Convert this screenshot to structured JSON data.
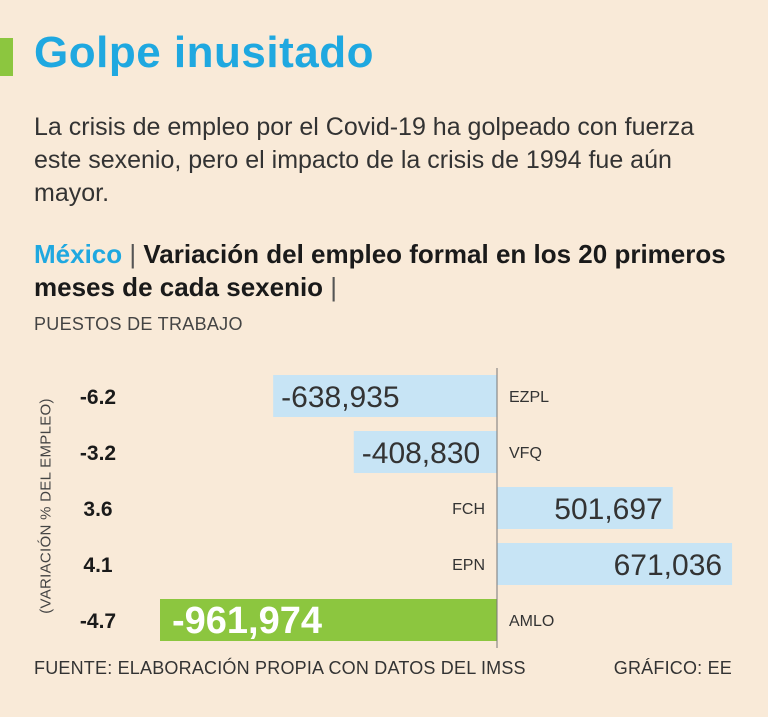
{
  "title": "Golpe inusitado",
  "subtitle": "La crisis de empleo por el Covid-19 ha golpeado con fuerza este sexenio, pero el impacto de la crisis de 1994 fue aún mayor.",
  "chart_header": {
    "country": "México",
    "separator": "|",
    "title": "Variación del empleo formal en los 20 primeros meses de cada sexenio",
    "end_separator": "|"
  },
  "units_label": "PUESTOS DE TRABAJO",
  "colors": {
    "title": "#1fa8e0",
    "bar_default": "#c7e4f5",
    "bar_highlight": "#8cc63f",
    "background": "#f9ead8"
  },
  "chart_data": {
    "type": "bar",
    "orientation": "horizontal",
    "title": "Variación del empleo formal en los 20 primeros meses de cada sexenio",
    "units": "PUESTOS DE TRABAJO",
    "ylabel": "(VARIACIÓN % DEL EMPLEO)",
    "categories": [
      "EZPL",
      "VFQ",
      "FCH",
      "EPN",
      "AMLO"
    ],
    "values": [
      -638935,
      -408830,
      501697,
      671036,
      -961974
    ],
    "value_labels": [
      "-638,935",
      "-408,830",
      "501,697",
      "671,036",
      "-961,974"
    ],
    "pct_labels": [
      "-6.2",
      "-3.2",
      "3.6",
      "4.1",
      "-4.7"
    ],
    "highlight": "AMLO",
    "xlim": [
      -1000000,
      700000
    ]
  },
  "footer": {
    "source": "FUENTE: ELABORACIÓN PROPIA CON DATOS DEL IMSS",
    "credit": "GRÁFICO: EE"
  }
}
